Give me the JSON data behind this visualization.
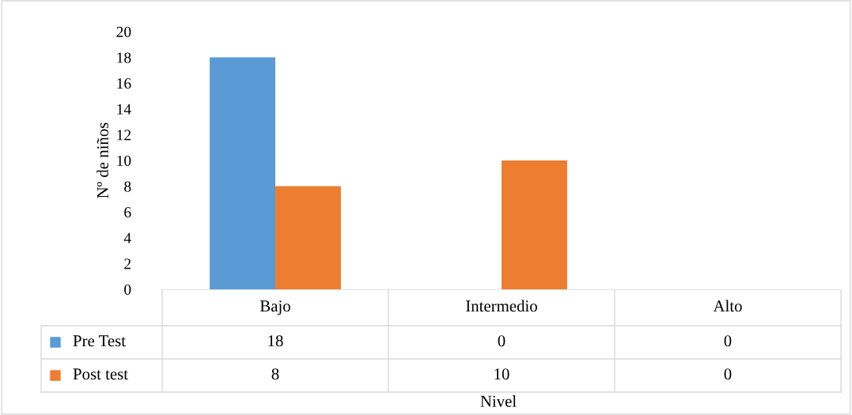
{
  "chart_data": {
    "type": "bar",
    "categories": [
      "Bajo",
      "Intermedio",
      "Alto"
    ],
    "series": [
      {
        "name": "Pre Test",
        "color": "#5b9bd5",
        "values": [
          18,
          0,
          0
        ]
      },
      {
        "name": "Post test",
        "color": "#ed7d31",
        "values": [
          8,
          10,
          0
        ]
      }
    ],
    "ylim": [
      0,
      20
    ],
    "yticks": [
      0,
      2,
      4,
      6,
      8,
      10,
      12,
      14,
      16,
      18,
      20
    ],
    "ylabel": "Nº de niños",
    "xlabel": "Nivel",
    "data_labels": true,
    "legend": "bottom left",
    "grid": false
  }
}
